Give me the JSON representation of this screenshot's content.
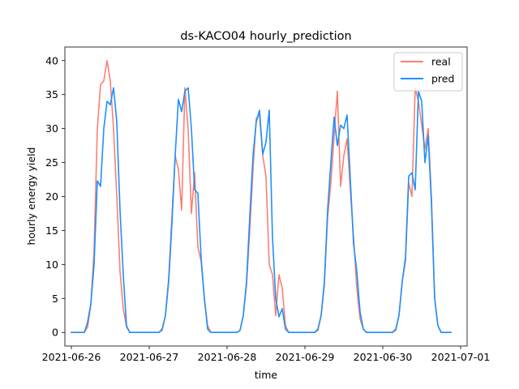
{
  "chart_data": {
    "type": "line",
    "title": "ds-KACO04 hourly_prediction",
    "xlabel": "time",
    "ylabel": "hourly energy yield",
    "xlim": [
      "2021-06-25T22:00",
      "2021-07-01T02:00"
    ],
    "ylim": [
      -2,
      42
    ],
    "x_ticks": [
      "2021-06-26",
      "2021-06-27",
      "2021-06-28",
      "2021-06-29",
      "2021-06-30",
      "2021-07-01"
    ],
    "y_ticks": [
      0,
      5,
      10,
      15,
      20,
      25,
      30,
      35,
      40
    ],
    "legend": {
      "placement": "upper right",
      "entries": [
        "real",
        "pred"
      ]
    },
    "grid": false,
    "series": [
      {
        "name": "real",
        "color": "#fa8072",
        "points": [
          [
            "2021-06-26T00:00",
            0
          ],
          [
            "2021-06-26T04:00",
            0
          ],
          [
            "2021-06-26T05:00",
            0.8
          ],
          [
            "2021-06-26T06:00",
            4
          ],
          [
            "2021-06-26T07:00",
            12
          ],
          [
            "2021-06-26T08:00",
            30
          ],
          [
            "2021-06-26T09:00",
            36.5
          ],
          [
            "2021-06-26T10:00",
            37
          ],
          [
            "2021-06-26T11:00",
            40
          ],
          [
            "2021-06-26T12:00",
            37
          ],
          [
            "2021-06-26T13:00",
            30
          ],
          [
            "2021-06-26T14:00",
            20
          ],
          [
            "2021-06-26T15:00",
            9
          ],
          [
            "2021-06-26T16:00",
            3.5
          ],
          [
            "2021-06-26T17:00",
            0.8
          ],
          [
            "2021-06-26T18:00",
            0
          ],
          [
            "2021-06-27T03:00",
            0
          ],
          [
            "2021-06-27T04:00",
            0.3
          ],
          [
            "2021-06-27T05:00",
            2.5
          ],
          [
            "2021-06-27T06:00",
            8
          ],
          [
            "2021-06-27T07:00",
            17
          ],
          [
            "2021-06-27T08:00",
            26
          ],
          [
            "2021-06-27T09:00",
            24
          ],
          [
            "2021-06-27T10:00",
            18
          ],
          [
            "2021-06-27T11:00",
            36
          ],
          [
            "2021-06-27T12:00",
            30
          ],
          [
            "2021-06-27T13:00",
            17.5
          ],
          [
            "2021-06-27T14:00",
            23.5
          ],
          [
            "2021-06-27T15:00",
            12.5
          ],
          [
            "2021-06-27T16:00",
            10.5
          ],
          [
            "2021-06-27T17:00",
            5
          ],
          [
            "2021-06-27T18:00",
            1
          ],
          [
            "2021-06-27T19:00",
            0
          ],
          [
            "2021-06-28T03:00",
            0
          ],
          [
            "2021-06-28T04:00",
            0.3
          ],
          [
            "2021-06-28T05:00",
            2.5
          ],
          [
            "2021-06-28T06:00",
            7
          ],
          [
            "2021-06-28T07:00",
            15
          ],
          [
            "2021-06-28T08:00",
            24
          ],
          [
            "2021-06-28T09:00",
            31.5
          ],
          [
            "2021-06-28T10:00",
            32
          ],
          [
            "2021-06-28T11:00",
            26
          ],
          [
            "2021-06-28T12:00",
            23
          ],
          [
            "2021-06-28T13:00",
            10
          ],
          [
            "2021-06-28T14:00",
            8.5
          ],
          [
            "2021-06-28T15:00",
            2.5
          ],
          [
            "2021-06-28T16:00",
            8.5
          ],
          [
            "2021-06-28T17:00",
            6.5
          ],
          [
            "2021-06-28T18:00",
            1
          ],
          [
            "2021-06-28T19:00",
            0
          ],
          [
            "2021-06-29T03:00",
            0
          ],
          [
            "2021-06-29T04:00",
            0.3
          ],
          [
            "2021-06-29T05:00",
            2.5
          ],
          [
            "2021-06-29T06:00",
            7
          ],
          [
            "2021-06-29T07:00",
            17
          ],
          [
            "2021-06-29T08:00",
            22
          ],
          [
            "2021-06-29T09:00",
            29
          ],
          [
            "2021-06-29T10:00",
            35.5
          ],
          [
            "2021-06-29T11:00",
            21.5
          ],
          [
            "2021-06-29T12:00",
            26
          ],
          [
            "2021-06-29T13:00",
            28.5
          ],
          [
            "2021-06-29T14:00",
            21
          ],
          [
            "2021-06-29T15:00",
            14
          ],
          [
            "2021-06-29T16:00",
            6.5
          ],
          [
            "2021-06-29T17:00",
            2
          ],
          [
            "2021-06-29T18:00",
            0.5
          ],
          [
            "2021-06-29T19:00",
            0
          ],
          [
            "2021-06-30T03:00",
            0
          ],
          [
            "2021-06-30T04:00",
            0.3
          ],
          [
            "2021-06-30T05:00",
            2.5
          ],
          [
            "2021-06-30T06:00",
            7.5
          ],
          [
            "2021-06-30T07:00",
            10.5
          ],
          [
            "2021-06-30T08:00",
            22
          ],
          [
            "2021-06-30T09:00",
            20
          ],
          [
            "2021-06-30T10:00",
            36
          ],
          [
            "2021-06-30T11:00",
            34
          ],
          [
            "2021-06-30T12:00",
            30.5
          ],
          [
            "2021-06-30T13:00",
            27
          ],
          [
            "2021-06-30T14:00",
            30
          ],
          [
            "2021-06-30T15:00",
            20
          ],
          [
            "2021-06-30T16:00",
            5
          ],
          [
            "2021-06-30T17:00",
            1
          ],
          [
            "2021-06-30T18:00",
            0
          ],
          [
            "2021-06-30T21:00",
            0
          ]
        ]
      },
      {
        "name": "pred",
        "color": "#1e90ff",
        "points": [
          [
            "2021-06-26T00:00",
            0
          ],
          [
            "2021-06-26T04:00",
            0
          ],
          [
            "2021-06-26T05:00",
            1.5
          ],
          [
            "2021-06-26T06:00",
            4.2
          ],
          [
            "2021-06-26T07:00",
            10
          ],
          [
            "2021-06-26T08:00",
            22.3
          ],
          [
            "2021-06-26T09:00",
            21.5
          ],
          [
            "2021-06-26T10:00",
            30
          ],
          [
            "2021-06-26T11:00",
            34
          ],
          [
            "2021-06-26T12:00",
            33.5
          ],
          [
            "2021-06-26T13:00",
            36
          ],
          [
            "2021-06-26T14:00",
            31
          ],
          [
            "2021-06-26T15:00",
            18
          ],
          [
            "2021-06-26T16:00",
            8.5
          ],
          [
            "2021-06-26T17:00",
            1
          ],
          [
            "2021-06-26T18:00",
            0
          ],
          [
            "2021-06-27T03:00",
            0
          ],
          [
            "2021-06-27T04:00",
            0.5
          ],
          [
            "2021-06-27T05:00",
            2.5
          ],
          [
            "2021-06-27T06:00",
            7.5
          ],
          [
            "2021-06-27T07:00",
            16
          ],
          [
            "2021-06-27T08:00",
            26
          ],
          [
            "2021-06-27T09:00",
            34.3
          ],
          [
            "2021-06-27T10:00",
            32.5
          ],
          [
            "2021-06-27T11:00",
            35.5
          ],
          [
            "2021-06-27T12:00",
            36
          ],
          [
            "2021-06-27T13:00",
            30
          ],
          [
            "2021-06-27T14:00",
            21
          ],
          [
            "2021-06-27T15:00",
            20.5
          ],
          [
            "2021-06-27T16:00",
            11
          ],
          [
            "2021-06-27T17:00",
            5
          ],
          [
            "2021-06-27T18:00",
            0.5
          ],
          [
            "2021-06-27T19:00",
            0
          ],
          [
            "2021-06-28T03:00",
            0
          ],
          [
            "2021-06-28T04:00",
            0.3
          ],
          [
            "2021-06-28T05:00",
            2.5
          ],
          [
            "2021-06-28T06:00",
            7.5
          ],
          [
            "2021-06-28T07:00",
            17
          ],
          [
            "2021-06-28T08:00",
            26
          ],
          [
            "2021-06-28T09:00",
            31
          ],
          [
            "2021-06-28T10:00",
            32.7
          ],
          [
            "2021-06-28T11:00",
            26.2
          ],
          [
            "2021-06-28T12:00",
            28
          ],
          [
            "2021-06-28T13:00",
            32.7
          ],
          [
            "2021-06-28T14:00",
            14
          ],
          [
            "2021-06-28T15:00",
            5
          ],
          [
            "2021-06-28T16:00",
            2.3
          ],
          [
            "2021-06-28T17:00",
            3.5
          ],
          [
            "2021-06-28T18:00",
            0.5
          ],
          [
            "2021-06-28T19:00",
            0
          ],
          [
            "2021-06-29T03:00",
            0
          ],
          [
            "2021-06-29T04:00",
            0.5
          ],
          [
            "2021-06-29T05:00",
            2.5
          ],
          [
            "2021-06-29T06:00",
            7.5
          ],
          [
            "2021-06-29T07:00",
            18
          ],
          [
            "2021-06-29T08:00",
            25
          ],
          [
            "2021-06-29T09:00",
            31.7
          ],
          [
            "2021-06-29T10:00",
            27.5
          ],
          [
            "2021-06-29T11:00",
            30.5
          ],
          [
            "2021-06-29T12:00",
            30
          ],
          [
            "2021-06-29T13:00",
            32
          ],
          [
            "2021-06-29T14:00",
            22.5
          ],
          [
            "2021-06-29T15:00",
            13
          ],
          [
            "2021-06-29T16:00",
            9
          ],
          [
            "2021-06-29T17:00",
            3
          ],
          [
            "2021-06-29T18:00",
            0.5
          ],
          [
            "2021-06-29T19:00",
            0
          ],
          [
            "2021-06-30T03:00",
            0
          ],
          [
            "2021-06-30T04:00",
            0.5
          ],
          [
            "2021-06-30T05:00",
            2.5
          ],
          [
            "2021-06-30T06:00",
            7.5
          ],
          [
            "2021-06-30T07:00",
            11
          ],
          [
            "2021-06-30T08:00",
            23
          ],
          [
            "2021-06-30T09:00",
            23.5
          ],
          [
            "2021-06-30T10:00",
            21
          ],
          [
            "2021-06-30T11:00",
            35.5
          ],
          [
            "2021-06-30T12:00",
            34
          ],
          [
            "2021-06-30T13:00",
            25
          ],
          [
            "2021-06-30T14:00",
            29
          ],
          [
            "2021-06-30T15:00",
            19
          ],
          [
            "2021-06-30T16:00",
            5
          ],
          [
            "2021-06-30T17:00",
            1
          ],
          [
            "2021-06-30T18:00",
            0
          ],
          [
            "2021-06-30T21:00",
            0
          ]
        ]
      }
    ]
  }
}
